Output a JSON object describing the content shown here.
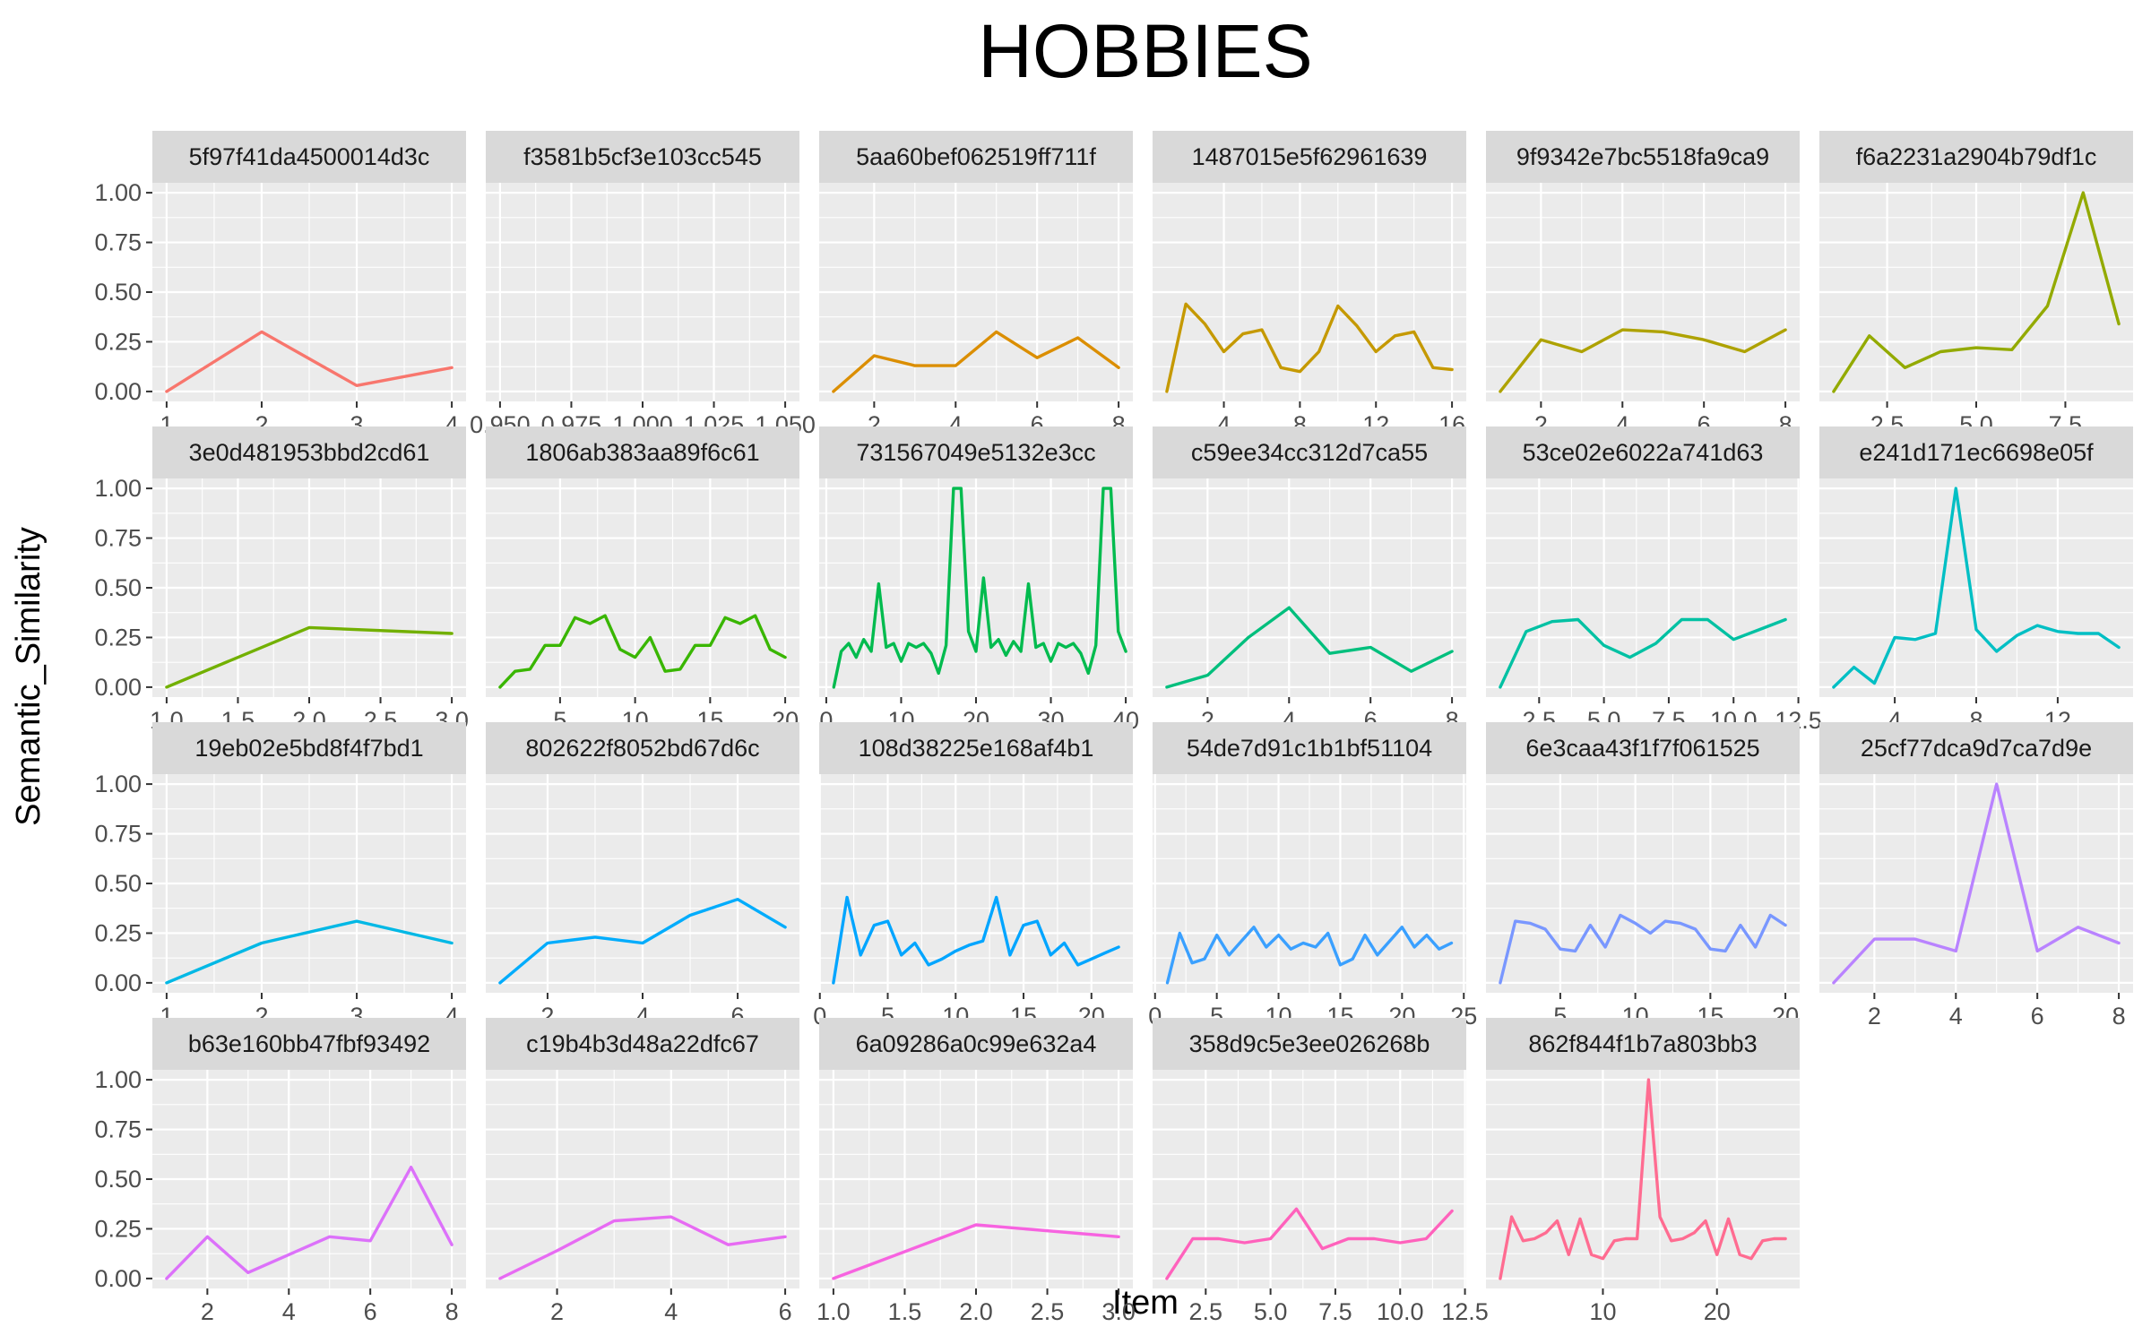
{
  "chart_data": {
    "type": "line",
    "title": "HOBBIES",
    "xlabel": "Item",
    "ylabel": "Semantic_Similarity",
    "ylim": [
      0,
      1
    ],
    "y_ticks": [
      0,
      0.25,
      0.5,
      0.75,
      1
    ],
    "y_tick_labels": [
      "0.00",
      "0.25",
      "0.50",
      "0.75",
      "1.00"
    ],
    "grid": true,
    "facets": [
      {
        "label": "5f97f41da4500014d3c",
        "color": "#F8766D",
        "xlim": [
          0.85,
          4.15
        ],
        "ticks": [
          1,
          2,
          3,
          4
        ],
        "tick_labels": [
          "1",
          "2",
          "3",
          "4"
        ],
        "x": [
          1,
          2,
          3,
          4
        ],
        "y": [
          0.0,
          0.3,
          0.03,
          0.12
        ]
      },
      {
        "label": "f3581b5cf3e103cc545",
        "color": "#EE8044",
        "xlim": [
          0.945,
          1.055
        ],
        "ticks": [
          0.95,
          0.975,
          1.0,
          1.025,
          1.05
        ],
        "tick_labels": [
          "0.950",
          "0.975",
          "1.000",
          "1.025",
          "1.050"
        ],
        "x": [],
        "y": []
      },
      {
        "label": "5aa60bef062519ff711f",
        "color": "#DB8E00",
        "xlim": [
          0.65,
          8.35
        ],
        "ticks": [
          2,
          4,
          6,
          8
        ],
        "tick_labels": [
          "2",
          "4",
          "6",
          "8"
        ],
        "x": [
          1,
          2,
          3,
          4,
          5,
          6,
          7,
          8
        ],
        "y": [
          0.0,
          0.18,
          0.13,
          0.13,
          0.3,
          0.17,
          0.27,
          0.12
        ]
      },
      {
        "label": "1487015e5f62961639",
        "color": "#C59900",
        "xlim": [
          0.25,
          16.75
        ],
        "ticks": [
          4,
          8,
          12,
          16
        ],
        "tick_labels": [
          "4",
          "8",
          "12",
          "16"
        ],
        "x": [
          1,
          2,
          3,
          4,
          5,
          6,
          7,
          8,
          9,
          10,
          11,
          12,
          13,
          14,
          15,
          16
        ],
        "y": [
          0.0,
          0.44,
          0.34,
          0.2,
          0.29,
          0.31,
          0.12,
          0.1,
          0.2,
          0.43,
          0.33,
          0.2,
          0.28,
          0.3,
          0.12,
          0.11
        ]
      },
      {
        "label": "9f9342e7bc5518fa9ca9",
        "color": "#AEA200",
        "xlim": [
          0.65,
          8.35
        ],
        "ticks": [
          2,
          4,
          6,
          8
        ],
        "tick_labels": [
          "2",
          "4",
          "6",
          "8"
        ],
        "x": [
          1,
          2,
          3,
          4,
          5,
          6,
          7,
          8
        ],
        "y": [
          0.0,
          0.26,
          0.2,
          0.31,
          0.3,
          0.26,
          0.2,
          0.31
        ]
      },
      {
        "label": "f6a2231a2904b79df1c",
        "color": "#93AA00",
        "xlim": [
          0.6,
          9.4
        ],
        "ticks": [
          2.5,
          5.0,
          7.5
        ],
        "tick_labels": [
          "2.5",
          "5.0",
          "7.5"
        ],
        "x": [
          1,
          2,
          3,
          4,
          5,
          6,
          7,
          8,
          9
        ],
        "y": [
          0.0,
          0.28,
          0.12,
          0.2,
          0.22,
          0.21,
          0.43,
          1.0,
          0.34
        ]
      },
      {
        "label": "3e0d481953bbd2cd61",
        "color": "#72B000",
        "xlim": [
          0.9,
          3.1
        ],
        "ticks": [
          1.0,
          1.5,
          2.0,
          2.5,
          3.0
        ],
        "tick_labels": [
          "1.0",
          "1.5",
          "2.0",
          "2.5",
          "3.0"
        ],
        "x": [
          1,
          2,
          3
        ],
        "y": [
          0.0,
          0.3,
          0.27
        ]
      },
      {
        "label": "1806ab383aa89f6c61",
        "color": "#39B600",
        "xlim": [
          0.05,
          20.95
        ],
        "ticks": [
          5,
          10,
          15,
          20
        ],
        "tick_labels": [
          "5",
          "10",
          "15",
          "20"
        ],
        "x": [
          1,
          2,
          3,
          4,
          5,
          6,
          7,
          8,
          9,
          10,
          11,
          12,
          13,
          14,
          15,
          16,
          17,
          18,
          19,
          20
        ],
        "y": [
          0.0,
          0.08,
          0.09,
          0.21,
          0.21,
          0.35,
          0.32,
          0.36,
          0.19,
          0.15,
          0.25,
          0.08,
          0.09,
          0.21,
          0.21,
          0.35,
          0.32,
          0.36,
          0.19,
          0.15
        ]
      },
      {
        "label": "731567049e5132e3cc",
        "color": "#00BB4E",
        "xlim": [
          -0.95,
          40.95
        ],
        "ticks": [
          0,
          10,
          20,
          30,
          40
        ],
        "tick_labels": [
          "0",
          "10",
          "20",
          "30",
          "40"
        ],
        "x": [
          1,
          2,
          3,
          4,
          5,
          6,
          7,
          8,
          9,
          10,
          11,
          12,
          13,
          14,
          15,
          16,
          17,
          18,
          19,
          20,
          21,
          22,
          23,
          24,
          25,
          26,
          27,
          28,
          29,
          30,
          31,
          32,
          33,
          34,
          35,
          36,
          37,
          38,
          39,
          40
        ],
        "y": [
          0.0,
          0.18,
          0.22,
          0.15,
          0.24,
          0.18,
          0.52,
          0.2,
          0.22,
          0.13,
          0.22,
          0.2,
          0.22,
          0.17,
          0.07,
          0.21,
          1.0,
          1.0,
          0.28,
          0.18,
          0.55,
          0.2,
          0.24,
          0.16,
          0.23,
          0.18,
          0.52,
          0.2,
          0.22,
          0.13,
          0.22,
          0.2,
          0.22,
          0.17,
          0.07,
          0.21,
          1.0,
          1.0,
          0.28,
          0.18
        ]
      },
      {
        "label": "c59ee34cc312d7ca55",
        "color": "#00BF7D",
        "xlim": [
          0.65,
          8.35
        ],
        "ticks": [
          2,
          4,
          6,
          8
        ],
        "tick_labels": [
          "2",
          "4",
          "6",
          "8"
        ],
        "x": [
          1,
          2,
          3,
          4,
          5,
          6,
          7,
          8
        ],
        "y": [
          0.0,
          0.06,
          0.25,
          0.4,
          0.17,
          0.2,
          0.08,
          0.18
        ]
      },
      {
        "label": "53ce02e6022a741d63",
        "color": "#00C1A3",
        "xlim": [
          0.45,
          12.55
        ],
        "ticks": [
          2.5,
          5.0,
          7.5,
          10.0,
          12.5
        ],
        "tick_labels": [
          "2.5",
          "5.0",
          "7.5",
          "10.0",
          "12.5"
        ],
        "x": [
          1,
          2,
          3,
          4,
          5,
          6,
          7,
          8,
          9,
          10,
          11,
          12
        ],
        "y": [
          0.0,
          0.28,
          0.33,
          0.34,
          0.21,
          0.15,
          0.22,
          0.34,
          0.34,
          0.24,
          0.29,
          0.34
        ]
      },
      {
        "label": "e241d171ec6698e05f",
        "color": "#00BFC4",
        "xlim": [
          0.3,
          15.7
        ],
        "ticks": [
          4,
          8,
          12
        ],
        "tick_labels": [
          "4",
          "8",
          "12"
        ],
        "x": [
          1,
          2,
          3,
          4,
          5,
          6,
          7,
          8,
          9,
          10,
          11,
          12,
          13,
          14,
          15
        ],
        "y": [
          0.0,
          0.1,
          0.02,
          0.25,
          0.24,
          0.27,
          1.0,
          0.29,
          0.18,
          0.26,
          0.31,
          0.28,
          0.27,
          0.27,
          0.2
        ]
      },
      {
        "label": "19eb02e5bd8f4f7bd1",
        "color": "#00B8E5",
        "xlim": [
          0.85,
          4.15
        ],
        "ticks": [
          1,
          2,
          3,
          4
        ],
        "tick_labels": [
          "1",
          "2",
          "3",
          "4"
        ],
        "x": [
          1,
          2,
          3,
          4
        ],
        "y": [
          0.0,
          0.2,
          0.31,
          0.2
        ]
      },
      {
        "label": "802622f8052bd67d6c",
        "color": "#00ACFC",
        "xlim": [
          0.7,
          7.3
        ],
        "ticks": [
          2,
          4,
          6
        ],
        "tick_labels": [
          "2",
          "4",
          "6"
        ],
        "x": [
          1,
          2,
          3,
          4,
          5,
          6,
          7
        ],
        "y": [
          0.0,
          0.2,
          0.23,
          0.2,
          0.34,
          0.42,
          0.28
        ]
      },
      {
        "label": "108d38225e168af4b1",
        "color": "#00A5FF",
        "xlim": [
          -0.05,
          23.05
        ],
        "ticks": [
          0,
          5,
          10,
          15,
          20
        ],
        "tick_labels": [
          "0",
          "5",
          "10",
          "15",
          "20"
        ],
        "x": [
          1,
          2,
          3,
          4,
          5,
          6,
          7,
          8,
          9,
          10,
          11,
          12,
          13,
          14,
          15,
          16,
          17,
          18,
          19,
          20,
          21,
          22
        ],
        "y": [
          0.0,
          0.43,
          0.14,
          0.29,
          0.31,
          0.14,
          0.2,
          0.09,
          0.12,
          0.16,
          0.19,
          0.21,
          0.43,
          0.14,
          0.29,
          0.31,
          0.14,
          0.2,
          0.09,
          0.12,
          0.15,
          0.18
        ]
      },
      {
        "label": "54de7d91c1b1bf51104",
        "color": "#3AA0FF",
        "xlim": [
          -0.2,
          25.2
        ],
        "ticks": [
          0,
          5,
          10,
          15,
          20,
          25
        ],
        "tick_labels": [
          "0",
          "5",
          "10",
          "15",
          "20",
          "25"
        ],
        "x": [
          1,
          2,
          3,
          4,
          5,
          6,
          7,
          8,
          9,
          10,
          11,
          12,
          13,
          14,
          15,
          16,
          17,
          18,
          19,
          20,
          21,
          22,
          23,
          24
        ],
        "y": [
          0.0,
          0.25,
          0.1,
          0.12,
          0.24,
          0.14,
          0.21,
          0.28,
          0.18,
          0.24,
          0.17,
          0.2,
          0.18,
          0.25,
          0.09,
          0.12,
          0.24,
          0.14,
          0.21,
          0.28,
          0.18,
          0.24,
          0.17,
          0.2
        ]
      },
      {
        "label": "6e3caa43f1f7f061525",
        "color": "#7997FF",
        "xlim": [
          0.05,
          20.95
        ],
        "ticks": [
          5,
          10,
          15,
          20
        ],
        "tick_labels": [
          "5",
          "10",
          "15",
          "20"
        ],
        "x": [
          1,
          2,
          3,
          4,
          5,
          6,
          7,
          8,
          9,
          10,
          11,
          12,
          13,
          14,
          15,
          16,
          17,
          18,
          19,
          20
        ],
        "y": [
          0.0,
          0.31,
          0.3,
          0.27,
          0.17,
          0.16,
          0.29,
          0.18,
          0.34,
          0.3,
          0.25,
          0.31,
          0.3,
          0.27,
          0.17,
          0.16,
          0.29,
          0.18,
          0.34,
          0.29
        ]
      },
      {
        "label": "25cf77dca9d7ca7d9e",
        "color": "#B983FF",
        "xlim": [
          0.65,
          8.35
        ],
        "ticks": [
          2,
          4,
          6,
          8
        ],
        "tick_labels": [
          "2",
          "4",
          "6",
          "8"
        ],
        "x": [
          1,
          2,
          3,
          4,
          5,
          6,
          7,
          8
        ],
        "y": [
          0.0,
          0.22,
          0.22,
          0.16,
          1.0,
          0.16,
          0.28,
          0.2
        ]
      },
      {
        "label": "b63e160bb47fbf93492",
        "color": "#DC71FA",
        "xlim": [
          0.65,
          8.35
        ],
        "ticks": [
          2,
          4,
          6,
          8
        ],
        "tick_labels": [
          "2",
          "4",
          "6",
          "8"
        ],
        "x": [
          1,
          2,
          3,
          4,
          5,
          6,
          7,
          8
        ],
        "y": [
          0.0,
          0.21,
          0.03,
          0.12,
          0.21,
          0.19,
          0.56,
          0.17
        ]
      },
      {
        "label": "c19b4b3d48a22dfc67",
        "color": "#E76BF3",
        "xlim": [
          0.75,
          6.25
        ],
        "ticks": [
          2,
          4,
          6
        ],
        "tick_labels": [
          "2",
          "4",
          "6"
        ],
        "x": [
          1,
          2,
          3,
          4,
          5,
          6
        ],
        "y": [
          0.0,
          0.14,
          0.29,
          0.31,
          0.17,
          0.21
        ]
      },
      {
        "label": "6a09286a0c99e632a4",
        "color": "#F763E0",
        "xlim": [
          0.9,
          3.1
        ],
        "ticks": [
          1.0,
          1.5,
          2.0,
          2.5,
          3.0
        ],
        "tick_labels": [
          "1.0",
          "1.5",
          "2.0",
          "2.5",
          "3.0"
        ],
        "x": [
          1,
          2,
          3
        ],
        "y": [
          0.0,
          0.27,
          0.21
        ]
      },
      {
        "label": "358d9c5e3ee026268b",
        "color": "#FF62BC",
        "xlim": [
          0.45,
          12.55
        ],
        "ticks": [
          2.5,
          5.0,
          7.5,
          10.0,
          12.5
        ],
        "tick_labels": [
          "2.5",
          "5.0",
          "7.5",
          "10.0",
          "12.5"
        ],
        "x": [
          1,
          2,
          3,
          4,
          5,
          6,
          7,
          8,
          9,
          10,
          11,
          12
        ],
        "y": [
          0.0,
          0.2,
          0.2,
          0.18,
          0.2,
          0.35,
          0.15,
          0.2,
          0.2,
          0.18,
          0.2,
          0.34
        ]
      },
      {
        "label": "862f844f1b7a803bb3",
        "color": "#FF6C91",
        "xlim": [
          -0.25,
          27.25
        ],
        "ticks": [
          10,
          20
        ],
        "tick_labels": [
          "10",
          "20"
        ],
        "x": [
          1,
          2,
          3,
          4,
          5,
          6,
          7,
          8,
          9,
          10,
          11,
          12,
          13,
          14,
          15,
          16,
          17,
          18,
          19,
          20,
          21,
          22,
          23,
          24,
          25,
          26
        ],
        "y": [
          0.0,
          0.31,
          0.19,
          0.2,
          0.23,
          0.29,
          0.12,
          0.3,
          0.12,
          0.1,
          0.19,
          0.2,
          0.2,
          1.0,
          0.31,
          0.19,
          0.2,
          0.23,
          0.29,
          0.12,
          0.3,
          0.12,
          0.1,
          0.19,
          0.2,
          0.2
        ]
      }
    ]
  }
}
